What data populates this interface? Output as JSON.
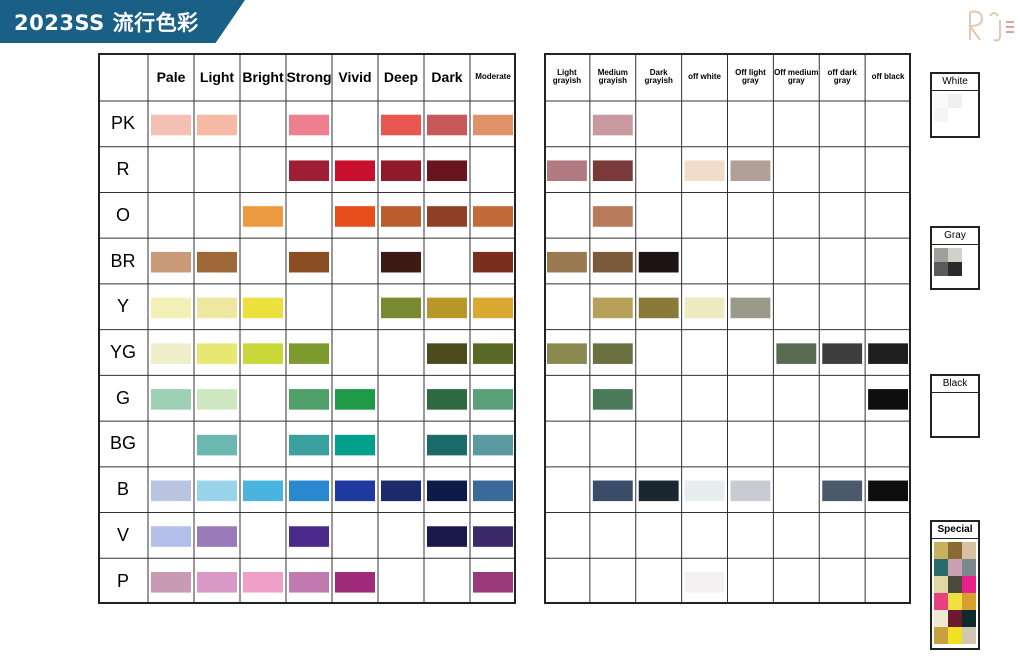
{
  "header": {
    "title": "2023SS 流行色彩"
  },
  "chart_data": {
    "type": "table",
    "title": "2023SS 流行色彩",
    "rows": [
      "PK",
      "R",
      "O",
      "BR",
      "Y",
      "YG",
      "G",
      "BG",
      "B",
      "V",
      "P"
    ],
    "left_grid": {
      "columns": [
        "Pale",
        "Light",
        "Bright",
        "Strong",
        "Vivid",
        "Deep",
        "Dark",
        "Moderate"
      ],
      "filled_cells": [
        {
          "row": "PK",
          "col": "Pale",
          "color": "#f4c0b4"
        },
        {
          "row": "PK",
          "col": "Light",
          "color": "#f5b9a4"
        },
        {
          "row": "PK",
          "col": "Strong",
          "color": "#ee7f8e"
        },
        {
          "row": "PK",
          "col": "Deep",
          "color": "#e8564f"
        },
        {
          "row": "PK",
          "col": "Dark",
          "color": "#c6585a"
        },
        {
          "row": "PK",
          "col": "Moderate",
          "color": "#e0926a"
        },
        {
          "row": "R",
          "col": "Strong",
          "color": "#9e1e35"
        },
        {
          "row": "R",
          "col": "Vivid",
          "color": "#c8102e"
        },
        {
          "row": "R",
          "col": "Deep",
          "color": "#8e1a2a"
        },
        {
          "row": "R",
          "col": "Dark",
          "color": "#6a1420"
        },
        {
          "row": "O",
          "col": "Bright",
          "color": "#ee9a40"
        },
        {
          "row": "O",
          "col": "Vivid",
          "color": "#e84e1b"
        },
        {
          "row": "O",
          "col": "Deep",
          "color": "#b85d2b"
        },
        {
          "row": "O",
          "col": "Dark",
          "color": "#8e3f25"
        },
        {
          "row": "O",
          "col": "Moderate",
          "color": "#c46a36"
        },
        {
          "row": "BR",
          "col": "Pale",
          "color": "#c99a78"
        },
        {
          "row": "BR",
          "col": "Light",
          "color": "#9e6838"
        },
        {
          "row": "BR",
          "col": "Strong",
          "color": "#8a4e22"
        },
        {
          "row": "BR",
          "col": "Deep",
          "color": "#3e1a14"
        },
        {
          "row": "BR",
          "col": "Moderate",
          "color": "#7a2e1e"
        },
        {
          "row": "Y",
          "col": "Pale",
          "color": "#f3f0b8"
        },
        {
          "row": "Y",
          "col": "Light",
          "color": "#ede7a0"
        },
        {
          "row": "Y",
          "col": "Bright",
          "color": "#ece03c"
        },
        {
          "row": "Y",
          "col": "Deep",
          "color": "#7a8a30"
        },
        {
          "row": "Y",
          "col": "Dark",
          "color": "#b8962a"
        },
        {
          "row": "Y",
          "col": "Moderate",
          "color": "#d8a830"
        },
        {
          "row": "YG",
          "col": "Pale",
          "color": "#eeeec8"
        },
        {
          "row": "YG",
          "col": "Light",
          "color": "#e6e872"
        },
        {
          "row": "YG",
          "col": "Bright",
          "color": "#c8d83a"
        },
        {
          "row": "YG",
          "col": "Strong",
          "color": "#7c9a2e"
        },
        {
          "row": "YG",
          "col": "Dark",
          "color": "#4a4a1a"
        },
        {
          "row": "YG",
          "col": "Moderate",
          "color": "#5a6a26"
        },
        {
          "row": "G",
          "col": "Pale",
          "color": "#9ed0b6"
        },
        {
          "row": "G",
          "col": "Light",
          "color": "#cde8c0"
        },
        {
          "row": "G",
          "col": "Strong",
          "color": "#50a06a"
        },
        {
          "row": "G",
          "col": "Vivid",
          "color": "#1e9a48"
        },
        {
          "row": "G",
          "col": "Dark",
          "color": "#2e6a40"
        },
        {
          "row": "G",
          "col": "Moderate",
          "color": "#5aa07a"
        },
        {
          "row": "BG",
          "col": "Light",
          "color": "#6ab8b0"
        },
        {
          "row": "BG",
          "col": "Strong",
          "color": "#3aa0a0"
        },
        {
          "row": "BG",
          "col": "Vivid",
          "color": "#00a08a"
        },
        {
          "row": "BG",
          "col": "Dark",
          "color": "#1a6a6a"
        },
        {
          "row": "BG",
          "col": "Moderate",
          "color": "#5a9aa0"
        },
        {
          "row": "B",
          "col": "Pale",
          "color": "#b8c4e0"
        },
        {
          "row": "B",
          "col": "Light",
          "color": "#9ad4ea"
        },
        {
          "row": "B",
          "col": "Bright",
          "color": "#4ab4e0"
        },
        {
          "row": "B",
          "col": "Strong",
          "color": "#2a88d0"
        },
        {
          "row": "B",
          "col": "Vivid",
          "color": "#1e3aa0"
        },
        {
          "row": "B",
          "col": "Deep",
          "color": "#1a2a6a"
        },
        {
          "row": "B",
          "col": "Dark",
          "color": "#0e1a4a"
        },
        {
          "row": "B",
          "col": "Moderate",
          "color": "#3a6a9a"
        },
        {
          "row": "V",
          "col": "Pale",
          "color": "#b4c0ea"
        },
        {
          "row": "V",
          "col": "Light",
          "color": "#9a7ab8"
        },
        {
          "row": "V",
          "col": "Strong",
          "color": "#4a2a8a"
        },
        {
          "row": "V",
          "col": "Dark",
          "color": "#1a1a4a"
        },
        {
          "row": "V",
          "col": "Moderate",
          "color": "#3a2a6a"
        },
        {
          "row": "P",
          "col": "Pale",
          "color": "#c89ab4"
        },
        {
          "row": "P",
          "col": "Light",
          "color": "#d898c8"
        },
        {
          "row": "P",
          "col": "Bright",
          "color": "#f0a0c8"
        },
        {
          "row": "P",
          "col": "Strong",
          "color": "#c07ab0"
        },
        {
          "row": "P",
          "col": "Vivid",
          "color": "#a02a7a"
        },
        {
          "row": "P",
          "col": "Moderate",
          "color": "#9a3a7a"
        }
      ]
    },
    "right_grid": {
      "columns": [
        "Light grayish",
        "Medium grayish",
        "Dark grayish",
        "off white",
        "Off light gray",
        "Off medium gray",
        "off dark gray",
        "off black"
      ],
      "filled_cells": [
        {
          "row": "PK",
          "col": "Medium grayish",
          "color": "#c89aa0"
        },
        {
          "row": "R",
          "col": "Light grayish",
          "color": "#b07a80"
        },
        {
          "row": "R",
          "col": "Medium grayish",
          "color": "#7a3a3a"
        },
        {
          "row": "R",
          "col": "off white",
          "color": "#f0dcc8"
        },
        {
          "row": "R",
          "col": "Off light gray",
          "color": "#b0a098"
        },
        {
          "row": "O",
          "col": "Medium grayish",
          "color": "#b87a58"
        },
        {
          "row": "BR",
          "col": "Light grayish",
          "color": "#9a7a50"
        },
        {
          "row": "BR",
          "col": "Medium grayish",
          "color": "#7a5a3a"
        },
        {
          "row": "BR",
          "col": "Dark grayish",
          "color": "#1e1414"
        },
        {
          "row": "Y",
          "col": "Medium grayish",
          "color": "#b8a058"
        },
        {
          "row": "Y",
          "col": "Dark grayish",
          "color": "#8a7a3a"
        },
        {
          "row": "Y",
          "col": "off white",
          "color": "#f0eac0"
        },
        {
          "row": "Y",
          "col": "Off light gray",
          "color": "#9a9a8a"
        },
        {
          "row": "YG",
          "col": "Light grayish",
          "color": "#8a8a50"
        },
        {
          "row": "YG",
          "col": "Medium grayish",
          "color": "#6a7040"
        },
        {
          "row": "YG",
          "col": "Off medium gray",
          "color": "#5a6a50"
        },
        {
          "row": "YG",
          "col": "off dark gray",
          "color": "#3e3e3e"
        },
        {
          "row": "YG",
          "col": "off black",
          "color": "#1e1e1e"
        },
        {
          "row": "G",
          "col": "Medium grayish",
          "color": "#4a7a5a"
        },
        {
          "row": "G",
          "col": "off black",
          "color": "#0e0e0e"
        },
        {
          "row": "B",
          "col": "Medium grayish",
          "color": "#3a4e6a"
        },
        {
          "row": "B",
          "col": "Dark grayish",
          "color": "#1a2630"
        },
        {
          "row": "B",
          "col": "off white",
          "color": "#e8eef0"
        },
        {
          "row": "B",
          "col": "Off light gray",
          "color": "#c8ccd0"
        },
        {
          "row": "B",
          "col": "off dark gray",
          "color": "#4a5a6a"
        },
        {
          "row": "B",
          "col": "off black",
          "color": "#0e0e0e"
        },
        {
          "row": "P",
          "col": "off white",
          "color": "#f4f0f2"
        }
      ]
    },
    "side_panels": [
      {
        "label": "White",
        "swatches": [
          "#fafafa",
          "#f0f0f0",
          "#f5f5f5"
        ]
      },
      {
        "label": "Gray",
        "swatches": [
          "#a0a09a",
          "#d0d0cc",
          "#5a5a5a",
          "#2a2a2a"
        ]
      },
      {
        "label": "Black",
        "swatches": []
      },
      {
        "label": "Special",
        "swatches": [
          "#c8b060",
          "#8a6a30",
          "#d8c0a0",
          "#2a6a6a",
          "#c8a0b0",
          "#7a8a8a",
          "#e0d8a0",
          "#4a4a3a",
          "#e8208a",
          "#e84080",
          "#f0e040",
          "#d8a030",
          "#f0e8d0",
          "#6a1a30",
          "#0e2a2a",
          "#c8a040",
          "#f0e020",
          "#d0c8b0"
        ]
      }
    ]
  }
}
